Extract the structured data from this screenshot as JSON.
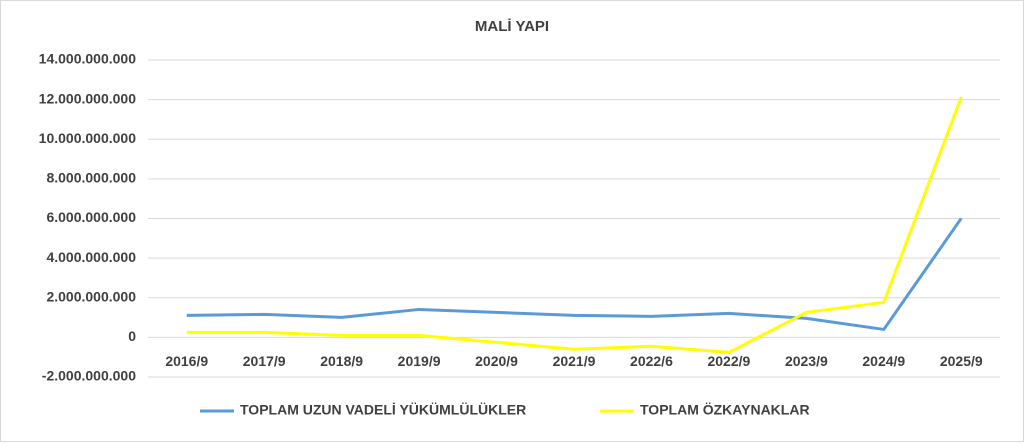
{
  "chart_data": {
    "type": "line",
    "title": "MALİ YAPI",
    "categories": [
      "2016/9",
      "2017/9",
      "2018/9",
      "2019/9",
      "2020/9",
      "2021/9",
      "2022/6",
      "2022/9",
      "2023/9",
      "2024/9",
      "2025/9"
    ],
    "series": [
      {
        "name": "TOPLAM UZUN VADELİ YÜKÜMLÜLÜKLER",
        "color": "#5b9bd5",
        "values": [
          1110000000,
          1160000000,
          1010000000,
          1410000000,
          1260000000,
          1110000000,
          1060000000,
          1210000000,
          960000000,
          400000000,
          6010000000
        ]
      },
      {
        "name": "TOPLAM ÖZKAYNAKLAR",
        "color": "#ffff00",
        "values": [
          250000000,
          250000000,
          100000000,
          100000000,
          -250000000,
          -600000000,
          -450000000,
          -760000000,
          1260000000,
          1770000000,
          12130000000
        ]
      }
    ],
    "ylim": [
      -2000000000,
      14000000000
    ],
    "yticks": [
      {
        "value": -2000000000,
        "label": "-2.000.000.000"
      },
      0,
      {
        "value": 2000000000,
        "label": "2.000.000.000"
      },
      {
        "value": 4000000000,
        "label": "4.000.000.000"
      },
      {
        "value": 6000000000,
        "label": "6.000.000.000"
      },
      {
        "value": 8000000000,
        "label": "8.000.000.000"
      },
      {
        "value": 10000000000,
        "label": "10.000.000.000"
      },
      {
        "value": 12000000000,
        "label": "12.000.000.000"
      },
      {
        "value": 14000000000,
        "label": "14.000.000.000"
      }
    ],
    "grid": true,
    "legend": "bottom"
  }
}
